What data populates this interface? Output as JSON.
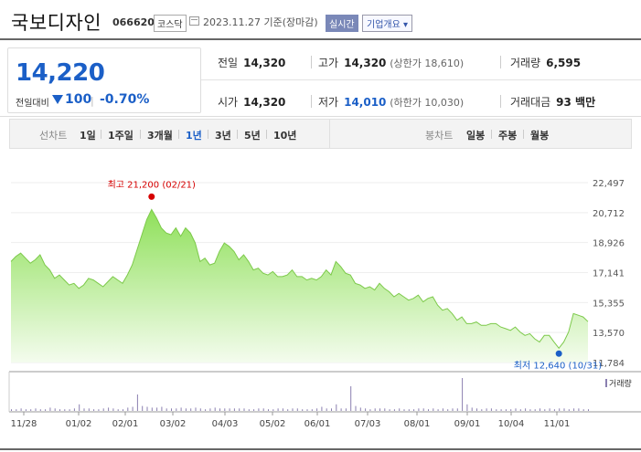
{
  "header": {
    "company_name": "국보디자인",
    "code": "066620",
    "market": "코스닥",
    "date": "2023.11.27 기준(장마감)",
    "realtime_label": "실시간",
    "company_info_label": "기업개요"
  },
  "summary": {
    "price": "14,220",
    "change_label": "전일대비",
    "change": "100",
    "change_pct": "-0.70%",
    "prev_label": "전일",
    "prev": "14,320",
    "high_label": "고가",
    "high": "14,320",
    "upper_limit": "(상한가 18,610)",
    "volume_label": "거래량",
    "volume": "6,595",
    "open_label": "시가",
    "open": "14,320",
    "low_label": "저가",
    "low": "14,010",
    "lower_limit": "(하한가 10,030)",
    "amount_label": "거래대금",
    "amount": "93 백만"
  },
  "tabs": {
    "line_label": "선차트",
    "periods": [
      "1일",
      "1주일",
      "3개월",
      "1년",
      "3년",
      "5년",
      "10년"
    ],
    "active": "1년",
    "candle_label": "봉차트",
    "candles": [
      "일봉",
      "주봉",
      "월봉"
    ]
  },
  "colors": {
    "accent": "#1b5fc7",
    "up": "#d60000",
    "area_top": "#8fe05a",
    "area_bottom": "#f1fbe9",
    "line": "#7cc94a"
  },
  "chart_data": {
    "type": "area",
    "yticks": [
      "22,497",
      "20,712",
      "18,926",
      "17,141",
      "15,355",
      "13,570",
      "11,784"
    ],
    "ylim": [
      11784,
      22497
    ],
    "xticks": [
      "11/28",
      "01/02",
      "02/01",
      "03/02",
      "04/03",
      "05/02",
      "06/01",
      "07/03",
      "08/01",
      "09/01",
      "10/04",
      "11/01"
    ],
    "high_annotation": "최고 21,200 (02/21)",
    "low_annotation": "최저 12,640 (10/31)",
    "volume_label": "거래량",
    "series": [
      {
        "values": [
          17800,
          18100,
          18300,
          18000,
          17700,
          17900,
          18200,
          17600,
          17300,
          16800,
          17000,
          16700,
          16400,
          16500,
          16200,
          16400,
          16800,
          16700,
          16500,
          16300,
          16600,
          16900,
          16700,
          16500,
          17000,
          17600,
          18500,
          19400,
          20300,
          20900,
          20400,
          19800,
          19500,
          19400,
          19800,
          19300,
          19800,
          19500,
          18900,
          17800,
          18000,
          17600,
          17700,
          18400,
          18900,
          18700,
          18400,
          17900,
          18200,
          17800,
          17300,
          17400,
          17100,
          17000,
          17200,
          16900,
          16900,
          17000,
          17300,
          16900,
          16900,
          16700,
          16800,
          16700,
          16900,
          17300,
          17000,
          17800,
          17500,
          17100,
          17000,
          16500,
          16400,
          16200,
          16300,
          16100,
          16500,
          16200,
          16000,
          15700,
          15900,
          15700,
          15500,
          15600,
          15800,
          15400,
          15600,
          15700,
          15200,
          14900,
          15000,
          14700,
          14300,
          14500,
          14100,
          14100,
          14200,
          14000,
          14000,
          14100,
          14100,
          13900,
          13800,
          13700,
          13900,
          13600,
          13400,
          13500,
          13200,
          13000,
          13400,
          13400,
          13000,
          12640,
          13000,
          13600,
          14700,
          14600,
          14500,
          14220
        ]
      }
    ],
    "volume": [
      2,
      2,
      3,
      2,
      2,
      3,
      2,
      2,
      4,
      3,
      2,
      2,
      2,
      3,
      8,
      3,
      3,
      2,
      2,
      3,
      4,
      3,
      2,
      2,
      4,
      5,
      20,
      6,
      5,
      4,
      4,
      5,
      3,
      3,
      3,
      4,
      3,
      3,
      4,
      3,
      2,
      3,
      4,
      3,
      3,
      3,
      3,
      3,
      3,
      2,
      2,
      3,
      3,
      2,
      2,
      3,
      3,
      2,
      3,
      3,
      2,
      2,
      2,
      3,
      5,
      3,
      3,
      8,
      3,
      3,
      30,
      6,
      4,
      3,
      2,
      3,
      3,
      3,
      2,
      2,
      3,
      2,
      2,
      2,
      3,
      3,
      2,
      3,
      2,
      3,
      2,
      3,
      3,
      40,
      8,
      4,
      3,
      2,
      3,
      3,
      2,
      2,
      2,
      2,
      3,
      2,
      3,
      2,
      2,
      3,
      2,
      3,
      2,
      3,
      3,
      2,
      3,
      3,
      2,
      2
    ]
  }
}
